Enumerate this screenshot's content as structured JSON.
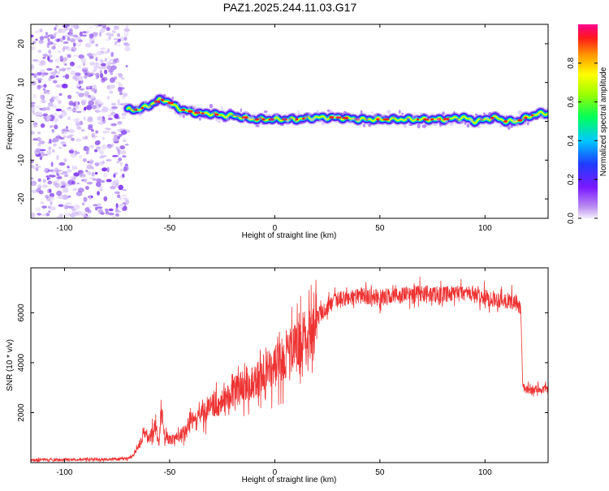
{
  "title": "PAZ1.2025.244.11.03.G17",
  "chart_data": [
    {
      "type": "heatmap",
      "title": "PAZ1.2025.244.11.03.G17",
      "xlabel": "Height of straight line (km)",
      "ylabel": "Frequency (Hz)",
      "xlim": [
        -116,
        130
      ],
      "ylim": [
        -25,
        25
      ],
      "xticks": [
        -100,
        -50,
        0,
        50,
        100
      ],
      "xtick_labels": [
        "-100",
        "-50",
        "0",
        "50",
        "100"
      ],
      "yticks": [
        -20,
        -10,
        0,
        10,
        20
      ],
      "ytick_labels": [
        "-20",
        "-10",
        "0",
        "10",
        "20"
      ],
      "noise_region_x": [
        -116,
        -70
      ],
      "ridge": {
        "x": [
          -70,
          -65,
          -60,
          -55,
          -52,
          -48,
          -44,
          -40,
          -35,
          -30,
          -25,
          -20,
          -15,
          -10,
          -5,
          0,
          10,
          20,
          30,
          40,
          50,
          60,
          70,
          80,
          90,
          95,
          100,
          105,
          110,
          115,
          120,
          125,
          130
        ],
        "freq": [
          3,
          3,
          4,
          5.5,
          5.5,
          4,
          3,
          2.5,
          2,
          2,
          1.5,
          1.5,
          1,
          0.5,
          0.5,
          0.5,
          0.5,
          1,
          1,
          0.5,
          0.5,
          0.5,
          0.5,
          0.5,
          1,
          0,
          0.5,
          1,
          0,
          0,
          1,
          2,
          2
        ]
      },
      "colorbar": {
        "label": "Normalized spectral amplitude",
        "range": [
          0,
          1
        ],
        "ticks": [
          0.0,
          0.2,
          0.4,
          0.6,
          0.8
        ],
        "tick_labels": [
          "0.0",
          "0.2",
          "0.4",
          "0.6",
          "0.8"
        ]
      }
    },
    {
      "type": "line",
      "xlabel": "Height of straight line (km)",
      "ylabel": "SNR (10 * v/v)",
      "xlim": [
        -116,
        130
      ],
      "ylim": [
        0,
        7800
      ],
      "xticks": [
        -100,
        -50,
        0,
        50,
        100
      ],
      "xtick_labels": [
        "-100",
        "-50",
        "0",
        "50",
        "100"
      ],
      "yticks": [
        2000,
        4000,
        6000
      ],
      "ytick_labels": [
        "2000",
        "4000",
        "6000"
      ],
      "color": "#ee3333",
      "series": [
        {
          "name": "SNR",
          "x": [
            -116,
            -100,
            -80,
            -70,
            -67,
            -64,
            -62,
            -60,
            -57,
            -55,
            -54,
            -53,
            -52,
            -50,
            -47,
            -45,
            -42,
            -40,
            -37,
            -35,
            -32,
            -30,
            -27,
            -25,
            -22,
            -20,
            -17,
            -15,
            -12,
            -10,
            -7,
            -5,
            -2,
            0,
            3,
            5,
            8,
            10,
            12,
            15,
            18,
            20,
            22,
            25,
            28,
            30,
            35,
            40,
            45,
            50,
            55,
            60,
            65,
            70,
            75,
            80,
            85,
            90,
            95,
            100,
            105,
            110,
            115,
            116,
            117,
            117.5,
            118,
            120,
            125,
            130
          ],
          "y": [
            100,
            120,
            130,
            150,
            300,
            800,
            1200,
            900,
            1500,
            700,
            2200,
            1300,
            1100,
            900,
            1000,
            1100,
            1300,
            1800,
            1600,
            2100,
            2000,
            2500,
            2200,
            2600,
            2700,
            2900,
            2900,
            3200,
            3100,
            3300,
            3400,
            3600,
            3700,
            3900,
            4000,
            4300,
            4500,
            4600,
            4800,
            5100,
            5500,
            5800,
            6000,
            6200,
            6400,
            6500,
            6600,
            6700,
            6650,
            6600,
            6650,
            6700,
            6750,
            6800,
            6750,
            6700,
            6750,
            6800,
            6700,
            6600,
            6550,
            6500,
            6400,
            6300,
            6100,
            4500,
            3000,
            2900,
            2950,
            2900
          ]
        }
      ]
    }
  ]
}
